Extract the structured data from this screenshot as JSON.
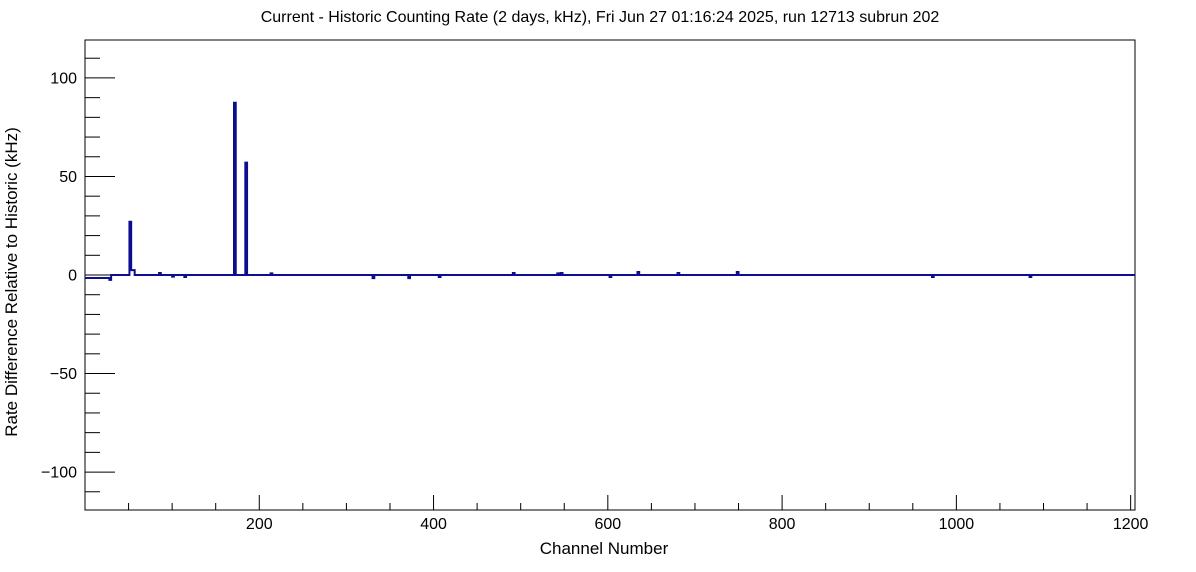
{
  "window": {
    "background_color": "#ffffff"
  },
  "chart_data": {
    "type": "line",
    "style": "step-histogram",
    "title": "Current - Historic Counting Rate (2 days, kHz), Fri Jun 27 01:16:24 2025, run 12713 subrun 202",
    "xlabel": "Channel Number",
    "ylabel": "Rate Difference Relative to Historic (kHz)",
    "xlim": [
      0,
      1205
    ],
    "ylim": [
      -119.25,
      119.25
    ],
    "grid": false,
    "legend": null,
    "series_color": "#0d0d8e",
    "axis_color": "#000000",
    "x_major_ticks": [
      {
        "value": 200,
        "label": "200"
      },
      {
        "value": 400,
        "label": "400"
      },
      {
        "value": 600,
        "label": "600"
      },
      {
        "value": 800,
        "label": "800"
      },
      {
        "value": 1000,
        "label": "1000"
      },
      {
        "value": 1200,
        "label": "1200"
      }
    ],
    "x_minor_step": 50,
    "y_major_ticks": [
      {
        "value": -100,
        "label": "−100"
      },
      {
        "value": -50,
        "label": "−50"
      },
      {
        "value": 0,
        "label": "0"
      },
      {
        "value": 50,
        "label": "50"
      },
      {
        "value": 100,
        "label": "100"
      }
    ],
    "y_minor_step": 10,
    "peaks": [
      {
        "channel": 52,
        "value": 27.0
      },
      {
        "channel": 172,
        "value": 87.4
      },
      {
        "channel": 185,
        "value": 57.0
      }
    ],
    "points_step_after": [
      [
        0,
        -1.5
      ],
      [
        28,
        -2.5
      ],
      [
        30,
        0
      ],
      [
        51,
        27.0
      ],
      [
        53,
        2.5
      ],
      [
        57,
        0
      ],
      [
        85,
        1.0
      ],
      [
        87,
        0
      ],
      [
        100,
        -0.8
      ],
      [
        102,
        0
      ],
      [
        114,
        -1.0
      ],
      [
        116,
        0
      ],
      [
        171,
        87.4
      ],
      [
        173,
        0
      ],
      [
        184,
        57.0
      ],
      [
        186,
        0
      ],
      [
        213,
        0.8
      ],
      [
        215,
        0
      ],
      [
        330,
        -1.6
      ],
      [
        332,
        0
      ],
      [
        371,
        -1.6
      ],
      [
        373,
        0
      ],
      [
        406,
        -1.0
      ],
      [
        408,
        0
      ],
      [
        491,
        1.0
      ],
      [
        493,
        0
      ],
      [
        542,
        0.8
      ],
      [
        544,
        0
      ],
      [
        546,
        1.0
      ],
      [
        548,
        0
      ],
      [
        602,
        -1.0
      ],
      [
        604,
        0
      ],
      [
        634,
        1.5
      ],
      [
        636,
        0
      ],
      [
        680,
        1.0
      ],
      [
        682,
        0
      ],
      [
        748,
        1.5
      ],
      [
        750,
        0
      ],
      [
        972,
        -1.0
      ],
      [
        974,
        0
      ],
      [
        1084,
        -1.0
      ],
      [
        1086,
        0
      ],
      [
        1204,
        0
      ]
    ]
  }
}
